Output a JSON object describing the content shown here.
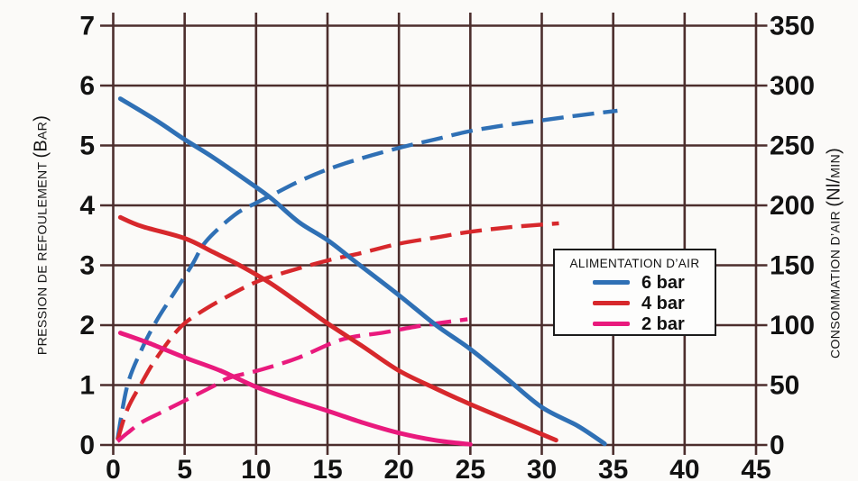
{
  "chart_data": {
    "type": "line",
    "background": "#fbfaf8",
    "grid_color": "#4c2e2d",
    "text_color": "#121212",
    "grid": true,
    "x_axis": {
      "label": "",
      "min": 0,
      "max": 45,
      "ticks": [
        0,
        5,
        10,
        15,
        20,
        25,
        30,
        35,
        40,
        45
      ]
    },
    "y_axis_left": {
      "title_prefix": "PRESSION DE REFOULEMENT ",
      "title_unit_open": "(B",
      "title_unit_small": "AR",
      "title_unit_close": ")",
      "unit": "bar",
      "min": 0,
      "max": 7,
      "ticks": [
        0,
        1,
        2,
        3,
        4,
        5,
        6,
        7
      ]
    },
    "y_axis_right": {
      "title_prefix": "CONSOMMATION D’AIR ",
      "title_unit_open": "(Nl/",
      "title_unit_small": "MIN",
      "title_unit_close": ")",
      "unit": "Nl/min",
      "min": 0,
      "max": 350,
      "ticks": [
        0,
        50,
        100,
        150,
        200,
        250,
        300,
        350
      ]
    },
    "legend": {
      "title": "ALIMENTATION D’AIR",
      "position": "right-middle",
      "entries": [
        {
          "label": "6 bar",
          "color": "#2f70b5"
        },
        {
          "label": "4 bar",
          "color": "#d7282c"
        },
        {
          "label": "2 bar",
          "color": "#e91a7d"
        }
      ]
    },
    "series": [
      {
        "name": "consommation-6bar",
        "supply": "6 bar",
        "axis": "right",
        "dash": "dashed",
        "color": "#2f70b5",
        "unit": "Nl/min",
        "points": [
          [
            0.3,
            5
          ],
          [
            1,
            50
          ],
          [
            2,
            80
          ],
          [
            3,
            103
          ],
          [
            4,
            122
          ],
          [
            5.5,
            150
          ],
          [
            6.5,
            170
          ],
          [
            8.5,
            192
          ],
          [
            10,
            202
          ],
          [
            11.5,
            211
          ],
          [
            13,
            220
          ],
          [
            15,
            230
          ],
          [
            17.3,
            239
          ],
          [
            20,
            248
          ],
          [
            22.5,
            255
          ],
          [
            25,
            262
          ],
          [
            27.5,
            267
          ],
          [
            30,
            271
          ],
          [
            32.5,
            275
          ],
          [
            35.3,
            279
          ]
        ]
      },
      {
        "name": "consommation-4bar",
        "supply": "4 bar",
        "axis": "right",
        "dash": "dashed",
        "color": "#d7282c",
        "unit": "Nl/min",
        "points": [
          [
            0.3,
            4
          ],
          [
            1,
            30
          ],
          [
            2,
            52
          ],
          [
            3,
            72
          ],
          [
            4.6,
            97
          ],
          [
            6,
            110
          ],
          [
            8,
            124
          ],
          [
            10,
            136
          ],
          [
            12,
            144
          ],
          [
            15,
            154
          ],
          [
            17.3,
            160
          ],
          [
            20,
            168
          ],
          [
            22.5,
            173
          ],
          [
            25,
            178
          ],
          [
            28,
            182
          ],
          [
            31.2,
            185
          ]
        ]
      },
      {
        "name": "consommation-2bar",
        "supply": "2 bar",
        "axis": "right",
        "dash": "dashed",
        "color": "#e91a7d",
        "unit": "Nl/min",
        "points": [
          [
            0.3,
            3
          ],
          [
            1,
            10
          ],
          [
            2,
            19
          ],
          [
            3.5,
            28
          ],
          [
            5,
            37
          ],
          [
            7,
            49
          ],
          [
            8.1,
            56
          ],
          [
            10.4,
            63
          ],
          [
            13,
            73
          ],
          [
            16,
            88
          ],
          [
            19,
            94
          ],
          [
            21.8,
            100
          ],
          [
            24.8,
            105
          ]
        ]
      },
      {
        "name": "pression-6bar",
        "supply": "6 bar",
        "axis": "left",
        "dash": "solid",
        "color": "#2f70b5",
        "unit": "bar",
        "points": [
          [
            0.5,
            5.78
          ],
          [
            3,
            5.42
          ],
          [
            5,
            5.1
          ],
          [
            7,
            4.8
          ],
          [
            9,
            4.47
          ],
          [
            11,
            4.13
          ],
          [
            13,
            3.72
          ],
          [
            15,
            3.42
          ],
          [
            17,
            3.05
          ],
          [
            20,
            2.5
          ],
          [
            22.6,
            2.0
          ],
          [
            25,
            1.6
          ],
          [
            27.5,
            1.12
          ],
          [
            30,
            0.63
          ],
          [
            32.5,
            0.32
          ],
          [
            34.4,
            0.02
          ]
        ]
      },
      {
        "name": "pression-4bar",
        "supply": "4 bar",
        "axis": "left",
        "dash": "solid",
        "color": "#d7282c",
        "unit": "bar",
        "points": [
          [
            0.5,
            3.8
          ],
          [
            2,
            3.65
          ],
          [
            5,
            3.45
          ],
          [
            7,
            3.22
          ],
          [
            9,
            2.98
          ],
          [
            11,
            2.7
          ],
          [
            13,
            2.37
          ],
          [
            15,
            2.03
          ],
          [
            17.5,
            1.64
          ],
          [
            20,
            1.24
          ],
          [
            22.5,
            0.95
          ],
          [
            25,
            0.68
          ],
          [
            28,
            0.38
          ],
          [
            31,
            0.08
          ]
        ]
      },
      {
        "name": "pression-2bar",
        "supply": "2 bar",
        "axis": "left",
        "dash": "solid",
        "color": "#e91a7d",
        "unit": "bar",
        "points": [
          [
            0.5,
            1.87
          ],
          [
            2.5,
            1.7
          ],
          [
            5,
            1.46
          ],
          [
            7.5,
            1.24
          ],
          [
            10,
            0.97
          ],
          [
            12.5,
            0.76
          ],
          [
            15,
            0.57
          ],
          [
            17.5,
            0.37
          ],
          [
            20,
            0.2
          ],
          [
            22.5,
            0.08
          ],
          [
            25,
            0.01
          ]
        ]
      }
    ]
  }
}
